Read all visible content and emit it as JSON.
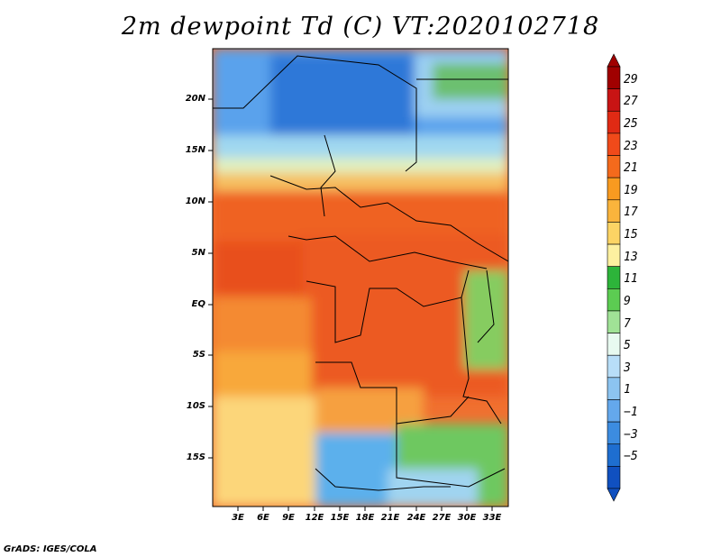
{
  "title": "2m dewpoint Td (C) VT:2020102718",
  "credit": "GrADS: IGES/COLA",
  "map": {
    "region": "Central & Southern-Central Africa",
    "lat_labels": [
      "20N",
      "15N",
      "10N",
      "5N",
      "EQ",
      "5S",
      "10S",
      "15S"
    ],
    "lon_labels": [
      "3E",
      "6E",
      "9E",
      "12E",
      "15E",
      "18E",
      "21E",
      "24E",
      "27E",
      "30E",
      "33E"
    ]
  },
  "colorbar": {
    "labels": [
      "29",
      "27",
      "25",
      "23",
      "21",
      "19",
      "17",
      "15",
      "13",
      "11",
      "9",
      "7",
      "5",
      "3",
      "1",
      "−1",
      "−3",
      "−5"
    ],
    "colors": [
      "#a00000",
      "#c81414",
      "#e02a14",
      "#f04a1a",
      "#f46a1c",
      "#f89a20",
      "#fab43c",
      "#fcd464",
      "#fdf0a0",
      "#2db43a",
      "#5ccc52",
      "#a0e296",
      "#e8faf0",
      "#b8def8",
      "#8cc4f0",
      "#64a8ec",
      "#3c8ce0",
      "#1e6ed0",
      "#1050c0"
    ]
  }
}
